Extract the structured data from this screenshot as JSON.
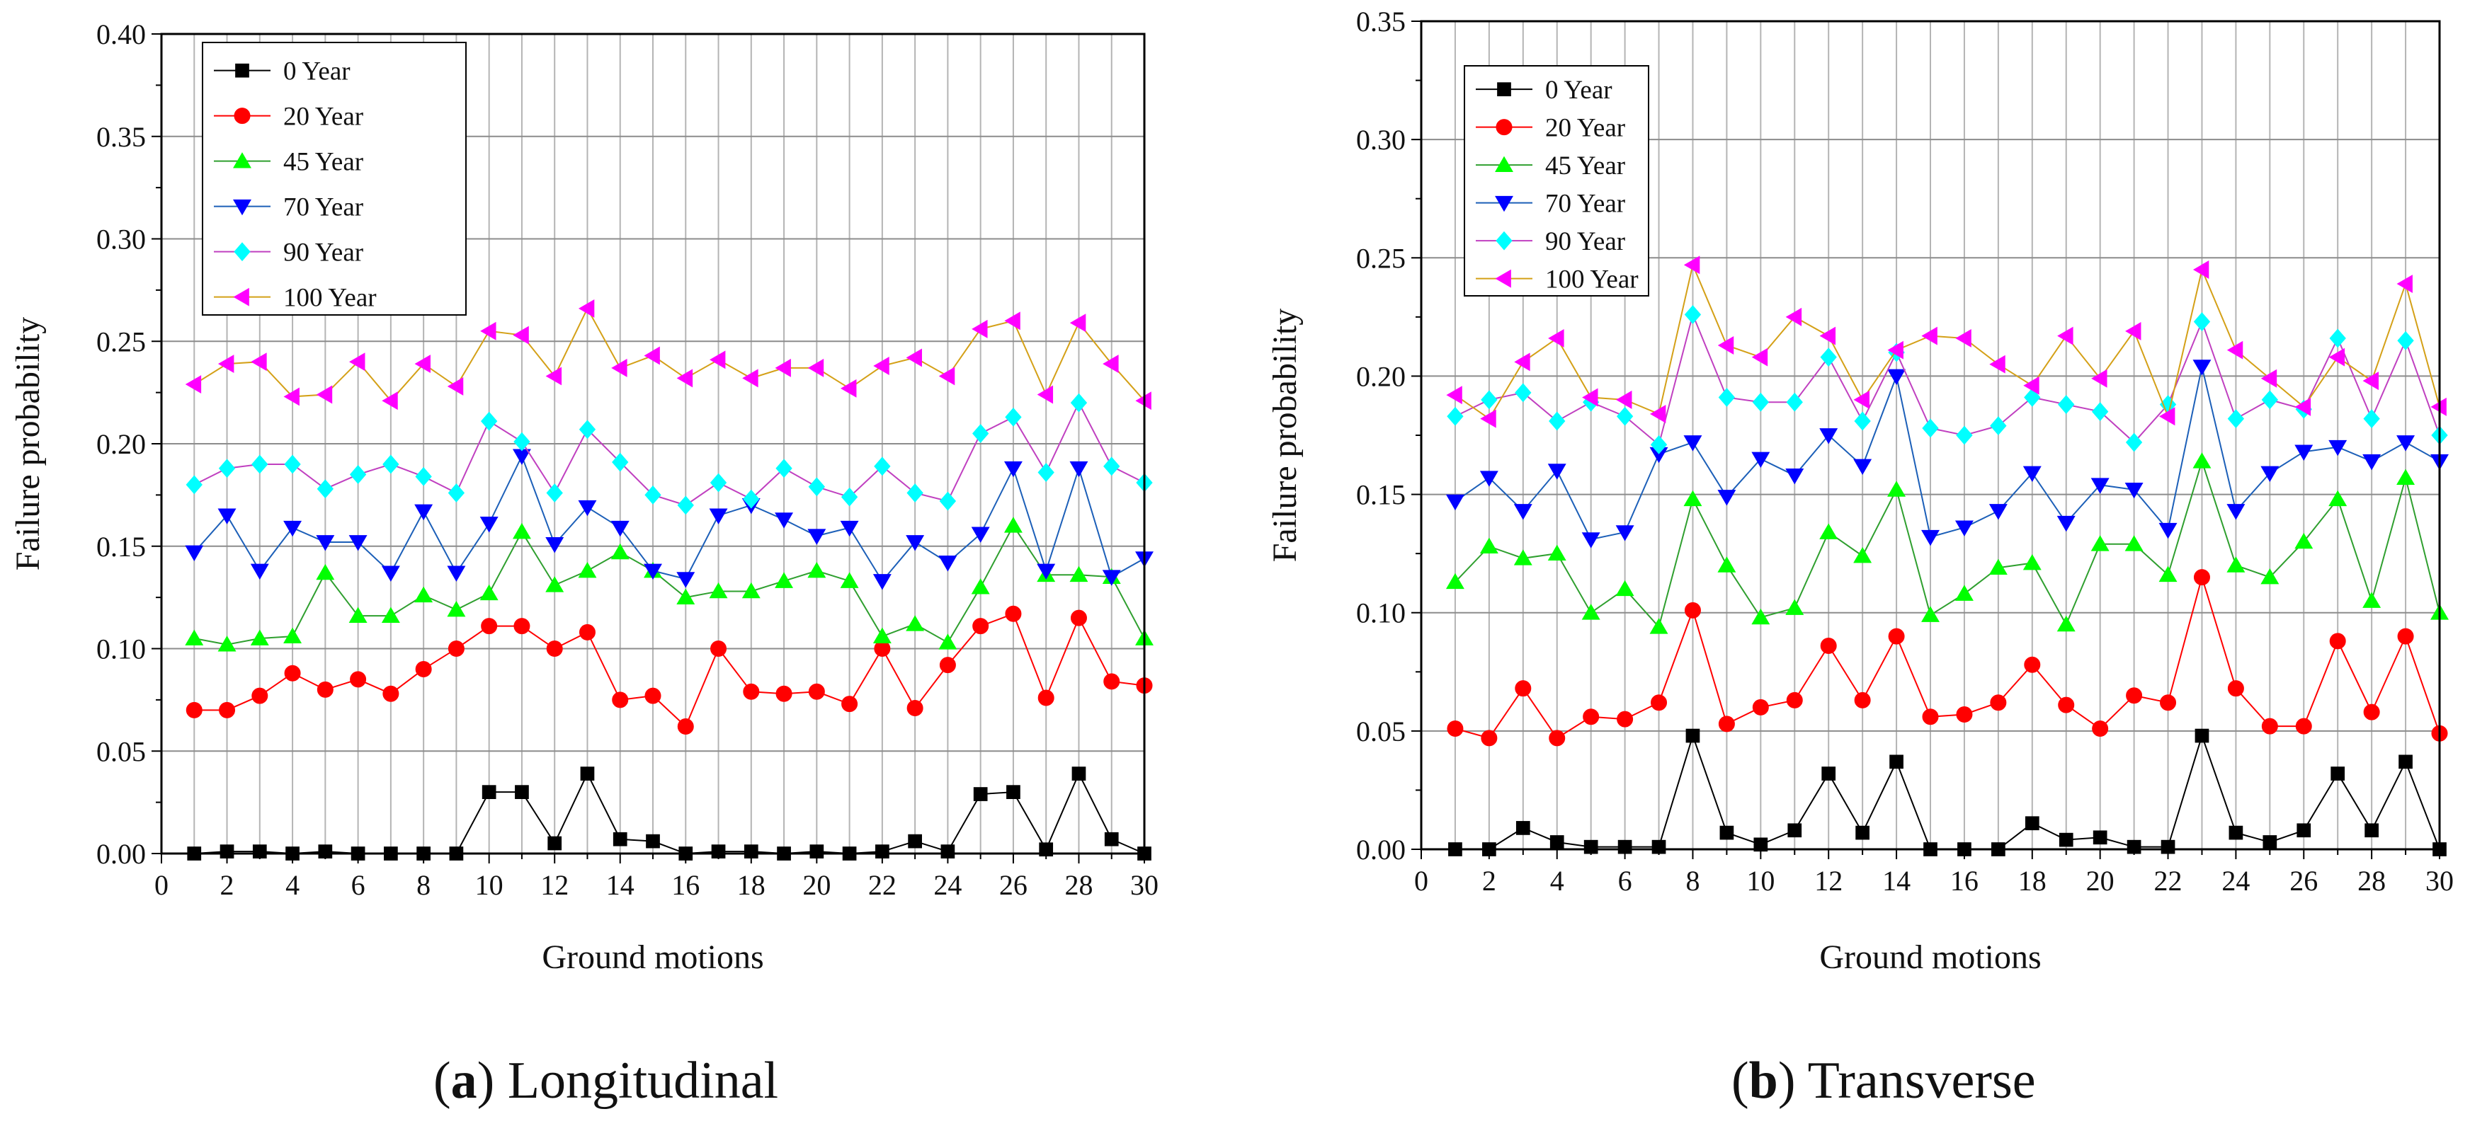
{
  "series_styles": [
    {
      "name": "0 Year",
      "marker": "square",
      "color": "#000000",
      "line": "#000000"
    },
    {
      "name": "20 Year",
      "marker": "circle",
      "color": "#ff0000",
      "line": "#ff0000"
    },
    {
      "name": "45 Year",
      "marker": "triangle-up",
      "color": "#00ff00",
      "line": "#2f9f2f"
    },
    {
      "name": "70 Year",
      "marker": "triangle-down",
      "color": "#0000ff",
      "line": "#1c5fb8"
    },
    {
      "name": "90 Year",
      "marker": "diamond",
      "color": "#00ffff",
      "line": "#c040c0"
    },
    {
      "name": "100 Year",
      "marker": "triangle-left",
      "color": "#ff00ff",
      "line": "#d4a017"
    }
  ],
  "chart_data": [
    {
      "type": "line",
      "caption_letter": "a",
      "caption_text": "Longitudinal",
      "xlabel": "Ground motions",
      "ylabel": "Failure probability",
      "xlim": [
        0,
        30
      ],
      "ylim": [
        0,
        0.4
      ],
      "xticks": [
        "0",
        "2",
        "4",
        "6",
        "8",
        "10",
        "12",
        "14",
        "16",
        "18",
        "20",
        "22",
        "24",
        "26",
        "28",
        "30"
      ],
      "yticks": [
        "0.00",
        "0.05",
        "0.10",
        "0.15",
        "0.20",
        "0.25",
        "0.30",
        "0.35",
        "0.40"
      ],
      "grid": true,
      "legend_position": "top-left",
      "x": [
        1,
        2,
        3,
        4,
        5,
        6,
        7,
        8,
        9,
        10,
        11,
        12,
        13,
        14,
        15,
        16,
        17,
        18,
        19,
        20,
        21,
        22,
        23,
        24,
        25,
        26,
        27,
        28,
        29,
        30
      ],
      "series": [
        {
          "name": "0 Year",
          "values": [
            0.0,
            0.001,
            0.001,
            0.0,
            0.001,
            0.0,
            0.0,
            0.0,
            0.0,
            0.03,
            0.03,
            0.005,
            0.039,
            0.007,
            0.006,
            0.0,
            0.001,
            0.001,
            0.0,
            0.001,
            0.0,
            0.001,
            0.006,
            0.001,
            0.029,
            0.03,
            0.002,
            0.039,
            0.007,
            0.0
          ]
        },
        {
          "name": "20 Year",
          "values": [
            0.07,
            0.07,
            0.077,
            0.088,
            0.08,
            0.085,
            0.078,
            0.09,
            0.1,
            0.111,
            0.111,
            0.1,
            0.108,
            0.075,
            0.077,
            0.062,
            0.1,
            0.079,
            0.078,
            0.079,
            0.073,
            0.1,
            0.071,
            0.092,
            0.111,
            0.117,
            0.076,
            0.115,
            0.084,
            0.082
          ]
        },
        {
          "name": "45 Year",
          "values": [
            0.105,
            0.102,
            0.105,
            0.106,
            0.137,
            0.116,
            0.116,
            0.126,
            0.119,
            0.127,
            0.157,
            0.131,
            0.138,
            0.147,
            0.138,
            0.125,
            0.128,
            0.128,
            0.133,
            0.138,
            0.133,
            0.106,
            0.112,
            0.103,
            0.13,
            0.16,
            0.136,
            0.136,
            0.135,
            0.105
          ]
        },
        {
          "name": "70 Year",
          "values": [
            0.147,
            0.165,
            0.138,
            0.159,
            0.152,
            0.152,
            0.137,
            0.167,
            0.137,
            0.161,
            0.194,
            0.151,
            0.169,
            0.159,
            0.138,
            0.134,
            0.165,
            0.17,
            0.163,
            0.155,
            0.159,
            0.133,
            0.152,
            0.142,
            0.156,
            0.188,
            0.138,
            0.188,
            0.135,
            0.144
          ]
        },
        {
          "name": "90 Year",
          "values": [
            0.18,
            0.188,
            0.19,
            0.19,
            0.178,
            0.185,
            0.19,
            0.184,
            0.176,
            0.211,
            0.201,
            0.176,
            0.207,
            0.191,
            0.175,
            0.17,
            0.181,
            0.173,
            0.188,
            0.179,
            0.174,
            0.189,
            0.176,
            0.172,
            0.205,
            0.213,
            0.186,
            0.22,
            0.189,
            0.181
          ]
        },
        {
          "name": "100 Year",
          "values": [
            0.229,
            0.239,
            0.24,
            0.223,
            0.224,
            0.24,
            0.221,
            0.239,
            0.228,
            0.255,
            0.253,
            0.233,
            0.266,
            0.237,
            0.243,
            0.232,
            0.241,
            0.232,
            0.237,
            0.237,
            0.227,
            0.238,
            0.242,
            0.233,
            0.256,
            0.26,
            0.224,
            0.259,
            0.239,
            0.221
          ]
        }
      ]
    },
    {
      "type": "line",
      "caption_letter": "b",
      "caption_text": "Transverse",
      "xlabel": "Ground motions",
      "ylabel": "Failure probability",
      "xlim": [
        0,
        30
      ],
      "ylim": [
        0,
        0.35
      ],
      "xticks": [
        "0",
        "2",
        "4",
        "6",
        "8",
        "10",
        "12",
        "14",
        "16",
        "18",
        "20",
        "22",
        "24",
        "26",
        "28",
        "30"
      ],
      "yticks": [
        "0.00",
        "0.05",
        "0.10",
        "0.15",
        "0.20",
        "0.25",
        "0.30",
        "0.35"
      ],
      "grid": true,
      "legend_position": "top-left",
      "x": [
        1,
        2,
        3,
        4,
        5,
        6,
        7,
        8,
        9,
        10,
        11,
        12,
        13,
        14,
        15,
        16,
        17,
        18,
        19,
        20,
        21,
        22,
        23,
        24,
        25,
        26,
        27,
        28,
        29,
        30
      ],
      "series": [
        {
          "name": "0 Year",
          "values": [
            0.0,
            0.0,
            0.009,
            0.003,
            0.001,
            0.001,
            0.001,
            0.048,
            0.007,
            0.002,
            0.008,
            0.032,
            0.007,
            0.037,
            0.0,
            0.0,
            0.0,
            0.011,
            0.004,
            0.005,
            0.001,
            0.001,
            0.048,
            0.007,
            0.003,
            0.008,
            0.032,
            0.008,
            0.037,
            0.0
          ]
        },
        {
          "name": "20 Year",
          "values": [
            0.051,
            0.047,
            0.068,
            0.047,
            0.056,
            0.055,
            0.062,
            0.101,
            0.053,
            0.06,
            0.063,
            0.086,
            0.063,
            0.09,
            0.056,
            0.057,
            0.062,
            0.078,
            0.061,
            0.051,
            0.065,
            0.062,
            0.115,
            0.068,
            0.052,
            0.052,
            0.088,
            0.058,
            0.09,
            0.049
          ]
        },
        {
          "name": "45 Year",
          "values": [
            0.113,
            0.128,
            0.123,
            0.125,
            0.1,
            0.11,
            0.094,
            0.148,
            0.12,
            0.098,
            0.102,
            0.134,
            0.124,
            0.152,
            0.099,
            0.108,
            0.119,
            0.121,
            0.095,
            0.129,
            0.129,
            0.116,
            0.164,
            0.12,
            0.115,
            0.13,
            0.148,
            0.105,
            0.157,
            0.1
          ]
        },
        {
          "name": "70 Year",
          "values": [
            0.147,
            0.157,
            0.143,
            0.16,
            0.131,
            0.134,
            0.167,
            0.172,
            0.149,
            0.165,
            0.158,
            0.175,
            0.162,
            0.2,
            0.132,
            0.136,
            0.143,
            0.159,
            0.138,
            0.154,
            0.152,
            0.135,
            0.204,
            0.143,
            0.159,
            0.168,
            0.17,
            0.164,
            0.172,
            0.164
          ]
        },
        {
          "name": "90 Year",
          "values": [
            0.183,
            0.19,
            0.193,
            0.181,
            0.189,
            0.183,
            0.171,
            0.226,
            0.191,
            0.189,
            0.189,
            0.208,
            0.181,
            0.21,
            0.178,
            0.175,
            0.179,
            0.191,
            0.188,
            0.185,
            0.172,
            0.188,
            0.223,
            0.182,
            0.19,
            0.186,
            0.216,
            0.182,
            0.215,
            0.175
          ]
        },
        {
          "name": "100 Year",
          "values": [
            0.192,
            0.182,
            0.206,
            0.216,
            0.191,
            0.19,
            0.184,
            0.247,
            0.213,
            0.208,
            0.225,
            0.217,
            0.19,
            0.211,
            0.217,
            0.216,
            0.205,
            0.196,
            0.217,
            0.199,
            0.219,
            0.183,
            0.245,
            0.211,
            0.199,
            0.187,
            0.208,
            0.198,
            0.239,
            0.187
          ]
        }
      ]
    }
  ]
}
